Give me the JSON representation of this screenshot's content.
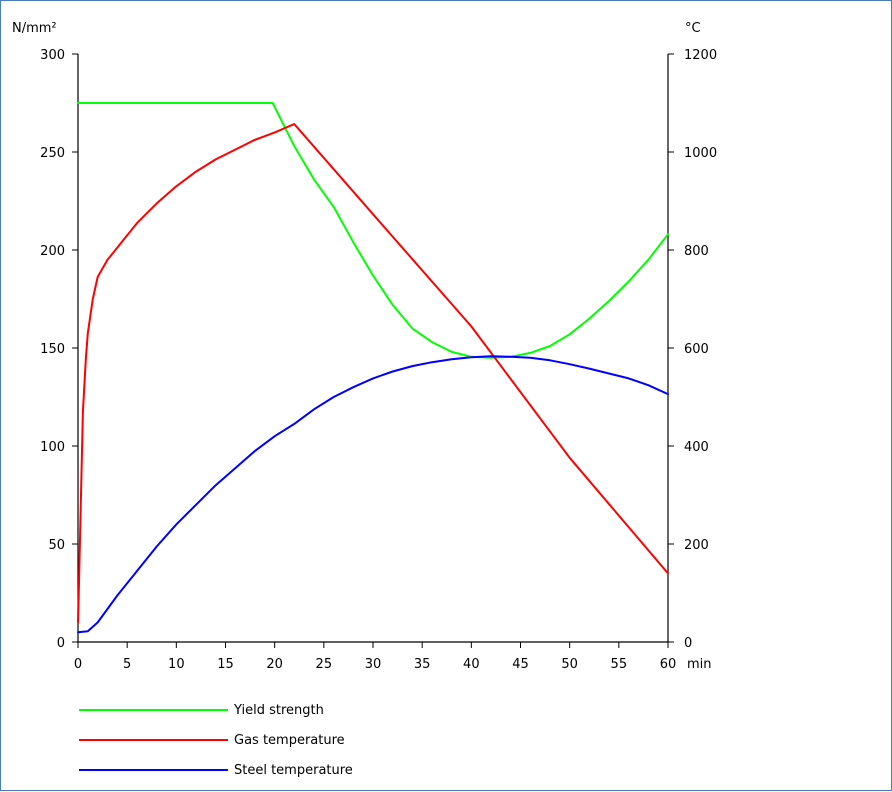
{
  "chart_data": {
    "type": "line",
    "title": "",
    "y_left_unit": "N/mm²",
    "y_right_unit": "°C",
    "x_unit": "min",
    "xlim": [
      0,
      60
    ],
    "ylim_left": [
      0,
      300
    ],
    "ylim_right": [
      0,
      1200
    ],
    "x_ticks": [
      0,
      5,
      10,
      15,
      20,
      25,
      30,
      35,
      40,
      45,
      50,
      55,
      60
    ],
    "y_left_ticks": [
      0,
      50,
      100,
      150,
      200,
      250,
      300
    ],
    "y_right_ticks": [
      0,
      200,
      400,
      600,
      800,
      1000,
      1200
    ],
    "grid": false,
    "legend_position": "bottom-left",
    "series": [
      {
        "name": "Yield strength",
        "color": "#00ff00",
        "axis": "left",
        "x": [
          0,
          5,
          10,
          15,
          19.8,
          22,
          24,
          26,
          28,
          30,
          32,
          34,
          36,
          38,
          40,
          42,
          44,
          46,
          48,
          50,
          52,
          54,
          56,
          58,
          60
        ],
        "y": [
          275,
          275,
          275,
          275,
          275,
          253,
          236,
          222,
          204,
          187,
          172,
          160,
          153,
          148,
          145.5,
          145,
          145.5,
          147.5,
          151,
          157,
          165,
          174,
          184,
          195,
          208
        ]
      },
      {
        "name": "Gas temperature",
        "color": "#ff0000",
        "axis": "right",
        "x": [
          0,
          0.1,
          0.3,
          0.5,
          0.8,
          1,
          1.5,
          2,
          3,
          4,
          5,
          6,
          8,
          10,
          12,
          14,
          16,
          18,
          20,
          22,
          30,
          40,
          50,
          60
        ],
        "y": [
          40,
          120,
          300,
          470,
          580,
          630,
          700,
          745,
          780,
          805,
          830,
          855,
          895,
          930,
          960,
          985,
          1005,
          1025,
          1040,
          1057,
          873,
          644,
          376,
          140
        ]
      },
      {
        "name": "Steel temperature",
        "color": "#0000ff",
        "axis": "right",
        "x": [
          0,
          1,
          2,
          4,
          6,
          8,
          10,
          12,
          14,
          16,
          18,
          20,
          22,
          24,
          26,
          28,
          30,
          32,
          34,
          36,
          38,
          40,
          42,
          44,
          46,
          48,
          50,
          52,
          54,
          56,
          58,
          60
        ],
        "y": [
          20,
          22,
          40,
          95,
          145,
          195,
          240,
          280,
          320,
          355,
          390,
          420,
          445,
          475,
          500,
          520,
          538,
          552,
          563,
          571,
          577,
          581,
          583,
          582,
          580,
          575,
          567,
          558,
          548,
          538,
          524,
          506
        ]
      }
    ]
  }
}
